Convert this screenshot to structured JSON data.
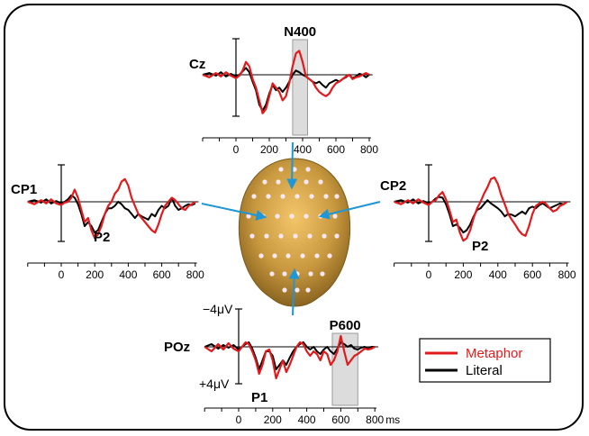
{
  "chart_data": {
    "type": "line",
    "title": "",
    "x_ticks": [
      0,
      200,
      400,
      600,
      800
    ],
    "x_unit": "ms",
    "scale_labels": {
      "top": "−4μV",
      "bottom": "+4μV"
    },
    "legend": {
      "placement": "bottom-right",
      "entries": [
        {
          "name": "Metaphor",
          "color": "#e31a1c"
        },
        {
          "name": "Literal",
          "color": "#000000"
        }
      ]
    },
    "colors": {
      "metaphor": "#e31a1c",
      "literal": "#000000",
      "arrow": "#1f96d6",
      "highlight": "#dcdcdc"
    },
    "panels": [
      {
        "id": "cz",
        "electrode": "Cz",
        "component": {
          "label": "N400",
          "x_range": [
            340,
            430
          ]
        },
        "annotations": [],
        "series": [
          {
            "name": "Metaphor",
            "x": [
              -200,
              -160,
              -120,
              -90,
              -60,
              -30,
              0,
              20,
              40,
              60,
              80,
              100,
              120,
              140,
              160,
              180,
              200,
              220,
              240,
              260,
              280,
              300,
              320,
              340,
              360,
              380,
              400,
              420,
              440,
              460,
              480,
              500,
              520,
              540,
              560,
              580,
              600,
              620,
              640,
              660,
              680,
              700,
              720,
              740,
              760,
              780,
              800
            ],
            "y": [
              0,
              0.3,
              -0.2,
              0.2,
              -0.3,
              0.1,
              0.4,
              0.1,
              -0.5,
              -1.5,
              -1.0,
              0.5,
              1.5,
              3.0,
              4.5,
              4.0,
              2.5,
              1.0,
              1.5,
              2.0,
              3.0,
              2.5,
              1.0,
              -1.0,
              -2.5,
              -2.8,
              -1.5,
              0.2,
              0.5,
              0.8,
              1.5,
              2.0,
              2.3,
              2.5,
              2.2,
              1.5,
              1.0,
              0.8,
              0.5,
              0.2,
              0.0,
              0.5,
              0.3,
              0.2,
              0.0,
              -0.2,
              0.0
            ]
          },
          {
            "name": "Literal",
            "x": [
              -200,
              -160,
              -120,
              -90,
              -60,
              -30,
              0,
              20,
              40,
              60,
              80,
              100,
              120,
              140,
              160,
              180,
              200,
              220,
              240,
              260,
              280,
              300,
              320,
              340,
              360,
              380,
              400,
              420,
              440,
              460,
              480,
              500,
              520,
              540,
              560,
              580,
              600,
              620,
              640,
              660,
              680,
              700,
              720,
              740,
              760,
              780,
              800
            ],
            "y": [
              0,
              -0.2,
              0.1,
              -0.3,
              0.2,
              -0.1,
              0.2,
              0.0,
              -0.4,
              -0.8,
              -0.3,
              0.8,
              1.8,
              3.5,
              4.2,
              3.5,
              2.2,
              1.2,
              1.8,
              1.5,
              2.0,
              1.5,
              0.8,
              0.0,
              -0.5,
              -0.3,
              0.0,
              0.2,
              0.5,
              0.8,
              1.0,
              0.8,
              1.2,
              1.5,
              1.0,
              0.8,
              0.6,
              0.8,
              0.5,
              0.3,
              0.0,
              0.4,
              0.2,
              -0.1,
              0.0,
              0.3,
              0.0
            ]
          }
        ]
      },
      {
        "id": "cp1",
        "electrode": "CP1",
        "component": null,
        "annotations": [
          "P2"
        ],
        "series": [
          {
            "name": "Metaphor",
            "x": [
              -200,
              -160,
              -120,
              -90,
              -60,
              -30,
              0,
              20,
              40,
              60,
              80,
              100,
              120,
              140,
              160,
              180,
              200,
              220,
              240,
              260,
              280,
              300,
              320,
              340,
              360,
              380,
              400,
              420,
              440,
              460,
              480,
              500,
              520,
              540,
              560,
              580,
              600,
              620,
              640,
              660,
              680,
              700,
              720,
              740,
              760,
              780,
              800
            ],
            "y": [
              0,
              0.3,
              -0.2,
              0.2,
              -0.3,
              0.2,
              0.4,
              0.1,
              0.0,
              -0.5,
              -1.5,
              -0.5,
              1.0,
              2.5,
              2.0,
              3.5,
              4.5,
              4.0,
              3.0,
              1.5,
              0.5,
              0.0,
              -1.0,
              -1.5,
              -2.5,
              -2.8,
              -2.0,
              -0.5,
              0.5,
              1.5,
              2.0,
              2.5,
              3.0,
              3.5,
              3.8,
              2.8,
              1.5,
              0.5,
              0.0,
              -0.5,
              -0.2,
              0.3,
              0.8,
              1.0,
              0.5,
              0.3,
              0.0
            ]
          },
          {
            "name": "Literal",
            "x": [
              -200,
              -160,
              -120,
              -90,
              -60,
              -30,
              0,
              20,
              40,
              60,
              80,
              100,
              120,
              140,
              160,
              180,
              200,
              220,
              240,
              260,
              280,
              300,
              320,
              340,
              360,
              380,
              400,
              420,
              440,
              460,
              480,
              500,
              520,
              540,
              560,
              580,
              600,
              620,
              640,
              660,
              680,
              700,
              720,
              740,
              760,
              780,
              800
            ],
            "y": [
              0,
              -0.2,
              0.1,
              -0.3,
              0.2,
              -0.1,
              0.2,
              0.0,
              -0.3,
              -0.8,
              -0.5,
              0.3,
              1.5,
              3.0,
              2.5,
              3.0,
              3.8,
              3.5,
              2.5,
              1.5,
              0.8,
              0.8,
              0.5,
              0.0,
              0.3,
              0.8,
              1.0,
              1.5,
              2.0,
              1.5,
              1.8,
              2.0,
              2.2,
              1.5,
              1.8,
              1.0,
              0.5,
              0.8,
              0.5,
              -0.5,
              0.5,
              1.0,
              0.8,
              0.5,
              0.3,
              0.4,
              0.2
            ]
          }
        ]
      },
      {
        "id": "cp2",
        "electrode": "CP2",
        "component": null,
        "annotations": [
          "P2"
        ],
        "series": [
          {
            "name": "Metaphor",
            "x": [
              -200,
              -160,
              -120,
              -90,
              -60,
              -30,
              0,
              20,
              40,
              60,
              80,
              100,
              120,
              140,
              160,
              180,
              200,
              220,
              240,
              260,
              280,
              300,
              320,
              340,
              360,
              380,
              400,
              420,
              440,
              460,
              480,
              500,
              520,
              540,
              560,
              580,
              600,
              620,
              640,
              660,
              680,
              700,
              720,
              740,
              760,
              780,
              800
            ],
            "y": [
              0,
              0.3,
              -0.2,
              0.2,
              -0.3,
              0.1,
              0.4,
              0.0,
              -0.2,
              -0.8,
              -1.2,
              -0.3,
              1.0,
              2.5,
              2.2,
              3.8,
              4.8,
              4.5,
              3.5,
              2.0,
              0.8,
              0.0,
              -1.0,
              -1.8,
              -2.8,
              -3.0,
              -2.2,
              -0.8,
              0.3,
              1.5,
              2.2,
              2.8,
              3.5,
              4.0,
              4.2,
              3.0,
              1.5,
              0.5,
              0.2,
              0.0,
              0.3,
              0.8,
              1.2,
              1.0,
              0.5,
              0.3,
              0.0
            ]
          },
          {
            "name": "Literal",
            "x": [
              -200,
              -160,
              -120,
              -90,
              -60,
              -30,
              0,
              20,
              40,
              60,
              80,
              100,
              120,
              140,
              160,
              180,
              200,
              220,
              240,
              260,
              280,
              300,
              320,
              340,
              360,
              380,
              400,
              420,
              440,
              460,
              480,
              500,
              520,
              540,
              560,
              580,
              600,
              620,
              640,
              660,
              680,
              700,
              720,
              740,
              760,
              780,
              800
            ],
            "y": [
              0,
              -0.2,
              0.1,
              -0.3,
              0.2,
              -0.1,
              0.2,
              0.0,
              -0.4,
              -0.6,
              -0.5,
              0.3,
              1.5,
              3.0,
              2.8,
              3.2,
              3.8,
              3.5,
              2.8,
              1.8,
              1.0,
              0.8,
              0.3,
              -0.2,
              0.2,
              0.5,
              0.8,
              1.2,
              1.8,
              1.5,
              1.6,
              1.8,
              1.5,
              1.2,
              1.5,
              0.8,
              0.6,
              0.8,
              0.4,
              0.2,
              0.5,
              0.8,
              0.6,
              0.4,
              0.2,
              0.3,
              0.0
            ]
          }
        ]
      },
      {
        "id": "poz",
        "electrode": "POz",
        "component": {
          "label": "P600",
          "x_range": [
            550,
            700
          ]
        },
        "annotations": [
          "P1"
        ],
        "series": [
          {
            "name": "Metaphor",
            "x": [
              -200,
              -160,
              -120,
              -90,
              -60,
              -30,
              0,
              20,
              40,
              60,
              80,
              100,
              120,
              140,
              160,
              180,
              200,
              220,
              240,
              260,
              280,
              300,
              320,
              340,
              360,
              380,
              400,
              420,
              440,
              460,
              480,
              500,
              520,
              540,
              560,
              580,
              600,
              620,
              640,
              660,
              680,
              700,
              720,
              740,
              760,
              780,
              800
            ],
            "y": [
              0,
              0.5,
              -0.3,
              0.3,
              -0.4,
              0.2,
              0.5,
              0.0,
              -0.5,
              -0.3,
              0.5,
              1.5,
              3.0,
              2.0,
              0.5,
              0.3,
              1.5,
              3.5,
              2.5,
              1.5,
              2.8,
              2.0,
              1.0,
              0.0,
              -0.5,
              -0.3,
              0.5,
              1.0,
              0.5,
              0.8,
              1.5,
              0.5,
              0.8,
              2.0,
              1.5,
              0.5,
              -1.2,
              0.5,
              2.0,
              1.5,
              1.0,
              0.8,
              0.5,
              0.2,
              0.3,
              0.2,
              0.0
            ]
          },
          {
            "name": "Literal",
            "x": [
              -200,
              -160,
              -120,
              -90,
              -60,
              -30,
              0,
              20,
              40,
              60,
              80,
              100,
              120,
              140,
              160,
              180,
              200,
              220,
              240,
              260,
              280,
              300,
              320,
              340,
              360,
              380,
              400,
              420,
              440,
              460,
              480,
              500,
              520,
              540,
              560,
              580,
              600,
              620,
              640,
              660,
              680,
              700,
              720,
              740,
              760,
              780,
              800
            ],
            "y": [
              0,
              -0.3,
              0.2,
              -0.2,
              0.1,
              -0.2,
              0.3,
              0.0,
              -0.3,
              -0.5,
              0.2,
              1.2,
              2.5,
              1.5,
              0.5,
              0.5,
              1.0,
              2.5,
              2.0,
              1.5,
              2.0,
              1.2,
              0.5,
              0.0,
              -0.3,
              -0.5,
              0.0,
              0.3,
              0.0,
              0.5,
              0.8,
              0.3,
              0.0,
              0.5,
              0.8,
              0.2,
              -0.5,
              -0.3,
              0.0,
              -0.2,
              0.2,
              0.3,
              0.1,
              0.0,
              0.2,
              0.0,
              0.0
            ]
          }
        ]
      }
    ]
  }
}
